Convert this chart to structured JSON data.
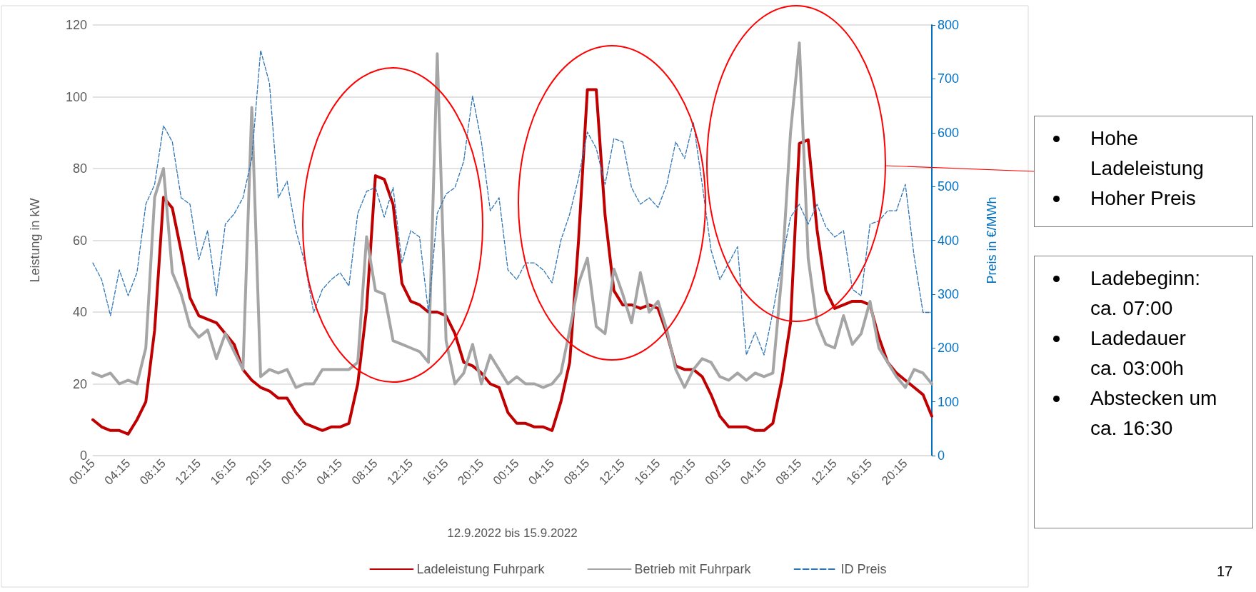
{
  "chart_data": {
    "type": "line",
    "xlabel": "12.9.2022 bis 15.9.2022",
    "ylabel": "Leistung in kW",
    "y2label": "Preis in €/MWh",
    "categories": [
      "00:15",
      null,
      null,
      null,
      "04:15",
      null,
      null,
      null,
      "08:15",
      null,
      null,
      null,
      "12:15",
      null,
      null,
      null,
      "16:15",
      null,
      null,
      null,
      "20:15",
      null,
      null,
      null,
      "00:15",
      null,
      null,
      null,
      "04:15",
      null,
      null,
      null,
      "08:15",
      null,
      null,
      null,
      "12:15",
      null,
      null,
      null,
      "16:15",
      null,
      null,
      null,
      "20:15",
      null,
      null,
      null,
      "00:15",
      null,
      null,
      null,
      "04:15",
      null,
      null,
      null,
      "08:15",
      null,
      null,
      null,
      "12:15",
      null,
      null,
      null,
      "16:15",
      null,
      null,
      null,
      "20:15",
      null,
      null,
      null,
      "00:15",
      null,
      null,
      null,
      "04:15",
      null,
      null,
      null,
      "08:15",
      null,
      null,
      null,
      "12:15",
      null,
      null,
      null,
      "16:15",
      null,
      null,
      null,
      "20:15",
      null,
      null,
      null
    ],
    "series": [
      {
        "name": "Ladeleistung Fuhrpark",
        "color": "#c00000",
        "line_style": "solid",
        "values": [
          10,
          8,
          7,
          7,
          6,
          10,
          15,
          35,
          72,
          69,
          57,
          44,
          39,
          38,
          37,
          34,
          31,
          24,
          21,
          19,
          18,
          16,
          16,
          12,
          9,
          8,
          7,
          8,
          8,
          9,
          20,
          41,
          78,
          77,
          70,
          48,
          43,
          42,
          40,
          40,
          39,
          34,
          26,
          25,
          23,
          20,
          19,
          12,
          9,
          9,
          8,
          8,
          7,
          15,
          26,
          60,
          102,
          102,
          67,
          46,
          42,
          42,
          41,
          42,
          41,
          34,
          25,
          24,
          24,
          22,
          17,
          11,
          8,
          8,
          8,
          7,
          7,
          9,
          21,
          37,
          87,
          88,
          63,
          46,
          41,
          42,
          43,
          43,
          42,
          33,
          26,
          23,
          21,
          19,
          17,
          11
        ]
      },
      {
        "name": "Betrieb mit Fuhrpark",
        "color": "#a5a5a5",
        "line_style": "solid",
        "values": [
          23,
          22,
          23,
          20,
          21,
          20,
          30,
          72,
          80,
          51,
          45,
          36,
          33,
          35,
          27,
          34,
          29,
          24,
          97,
          22,
          24,
          23,
          24,
          19,
          20,
          20,
          24,
          24,
          24,
          24,
          26,
          61,
          46,
          45,
          32,
          31,
          30,
          29,
          26,
          112,
          32,
          20,
          23,
          31,
          20,
          28,
          24,
          20,
          22,
          20,
          20,
          19,
          20,
          23,
          35,
          48,
          55,
          36,
          34,
          52,
          45,
          37,
          51,
          40,
          43,
          35,
          24,
          19,
          24,
          27,
          26,
          22,
          21,
          23,
          21,
          23,
          22,
          23,
          50,
          90,
          115,
          55,
          37,
          31,
          30,
          39,
          31,
          34,
          43,
          30,
          26,
          22,
          19,
          24,
          23,
          20
        ]
      },
      {
        "name": "ID Preis",
        "color": "#2e75b6",
        "line_style": "dashed",
        "axis": "y2",
        "values": [
          358,
          327,
          260,
          345,
          297,
          340,
          467,
          504,
          613,
          583,
          479,
          467,
          364,
          418,
          297,
          430,
          449,
          479,
          552,
          753,
          692,
          479,
          510,
          418,
          358,
          266,
          309,
          327,
          340,
          315,
          450,
          491,
          498,
          443,
          498,
          358,
          418,
          406,
          266,
          450,
          486,
          498,
          547,
          668,
          583,
          455,
          479,
          345,
          327,
          358,
          358,
          345,
          321,
          400,
          449,
          516,
          601,
          571,
          504,
          589,
          583,
          498,
          467,
          479,
          461,
          504,
          583,
          552,
          620,
          504,
          382,
          327,
          358,
          388,
          187,
          229,
          187,
          266,
          358,
          443,
          467,
          430,
          467,
          425,
          406,
          418,
          309,
          297,
          430,
          436,
          455,
          455,
          504,
          370,
          266,
          266
        ]
      }
    ],
    "ylim": [
      0,
      120
    ],
    "yticks": [
      0,
      20,
      40,
      60,
      80,
      100,
      120
    ],
    "y2lim": [
      0,
      800
    ],
    "y2ticks": [
      0,
      100,
      200,
      300,
      400,
      500,
      600,
      700,
      800
    ],
    "grid": "y",
    "legend": "bottom",
    "marker": "none",
    "annotations": [
      "Hohe\nLadeleistung",
      "Hoher Preis",
      "Ladebeginn:\nca. 07:00",
      "Ladedauer\nca. 03:00h",
      "Abstecken um\nca. 16:30",
      "17"
    ]
  }
}
